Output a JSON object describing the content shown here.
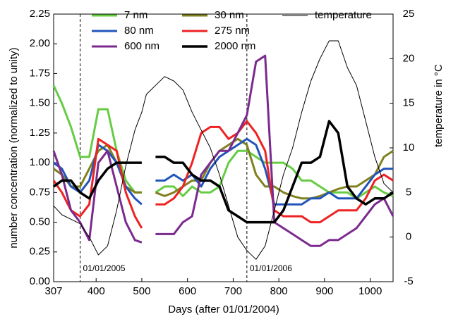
{
  "chart_data": {
    "type": "line",
    "xlabel": "Days (after 01/01/2004)",
    "ylabel": "number concentration (normalized to unity)",
    "y2label": "temperature in °C",
    "x": [
      307,
      325,
      345,
      365,
      385,
      405,
      425,
      445,
      465,
      485,
      500,
      510,
      530,
      550,
      570,
      590,
      610,
      630,
      650,
      670,
      690,
      710,
      730,
      750,
      770,
      790,
      810,
      830,
      850,
      870,
      890,
      910,
      930,
      950,
      970,
      990,
      1010,
      1030,
      1050
    ],
    "xlim": [
      307,
      1050
    ],
    "xticks": [
      307,
      400,
      500,
      600,
      700,
      800,
      900,
      1000
    ],
    "ylim": [
      0,
      2.25
    ],
    "yticks": [
      {
        "value": 0,
        "label": "0.00"
      },
      {
        "value": 0.25,
        "label": "0.25"
      },
      {
        "value": 0.5,
        "label": "0.50"
      },
      {
        "value": 0.75,
        "label": "0.75"
      },
      {
        "value": 1,
        "label": "1.00"
      },
      {
        "value": 1.25,
        "label": "1.25"
      },
      {
        "value": 1.5,
        "label": "1.50"
      },
      {
        "value": 1.75,
        "label": "1.75"
      },
      {
        "value": 2,
        "label": "2.00"
      },
      {
        "value": 2.25,
        "label": "2.25"
      }
    ],
    "y2lim": [
      -5,
      25
    ],
    "y2ticks": [
      -5,
      0,
      5,
      10,
      15,
      20,
      25
    ],
    "annotations": [
      {
        "x": 365,
        "label": "01/01/2005"
      },
      {
        "x": 730,
        "label": "01/01/2006"
      }
    ],
    "series": [
      {
        "name": "7 nm",
        "color": "#66cc44",
        "values": [
          1.65,
          1.5,
          1.3,
          1.05,
          1.05,
          1.45,
          1.45,
          1.1,
          0.85,
          0.75,
          0.75,
          null,
          0.75,
          0.8,
          0.8,
          0.72,
          0.8,
          0.75,
          0.75,
          0.8,
          1.0,
          1.1,
          1.1,
          1.05,
          1.0,
          1.0,
          1.0,
          0.95,
          0.85,
          0.85,
          0.8,
          0.75,
          0.75,
          0.75,
          0.7,
          0.75,
          0.8,
          0.75,
          0.72
        ]
      },
      {
        "name": "30 nm",
        "color": "#808020",
        "values": [
          0.95,
          0.9,
          0.8,
          0.8,
          0.95,
          1.1,
          1.15,
          1.0,
          0.8,
          0.75,
          0.75,
          null,
          0.75,
          0.72,
          0.75,
          0.8,
          0.85,
          0.85,
          1.0,
          1.1,
          1.15,
          1.2,
          1.15,
          0.9,
          0.8,
          0.8,
          0.75,
          0.72,
          0.7,
          0.7,
          0.72,
          0.75,
          0.78,
          0.8,
          0.8,
          0.85,
          0.9,
          1.05,
          1.1
        ]
      },
      {
        "name": "80 nm",
        "color": "#2255bb",
        "values": [
          1.0,
          0.95,
          0.8,
          0.75,
          0.85,
          1.15,
          1.1,
          1.0,
          0.8,
          0.7,
          0.65,
          null,
          0.85,
          0.85,
          0.9,
          0.85,
          0.9,
          0.8,
          0.95,
          1.05,
          1.1,
          1.15,
          1.2,
          1.15,
          0.95,
          0.65,
          0.65,
          0.65,
          0.65,
          0.7,
          0.7,
          0.75,
          0.7,
          0.7,
          0.7,
          0.8,
          0.9,
          0.95,
          0.95
        ]
      },
      {
        "name": "275 nm",
        "color": "#ee2222",
        "values": [
          0.85,
          0.75,
          0.6,
          0.55,
          0.65,
          1.2,
          1.15,
          1.1,
          0.75,
          0.55,
          0.45,
          null,
          0.65,
          0.65,
          0.7,
          0.8,
          1.0,
          1.25,
          1.3,
          1.3,
          1.2,
          1.25,
          1.35,
          1.25,
          1.1,
          0.6,
          0.55,
          0.55,
          0.55,
          0.5,
          0.5,
          0.55,
          0.6,
          0.6,
          0.6,
          0.7,
          0.85,
          0.9,
          0.85
        ]
      },
      {
        "name": "600 nm",
        "color": "#7b2a8e",
        "values": [
          1.1,
          0.9,
          0.6,
          0.5,
          0.35,
          1.0,
          1.1,
          0.8,
          0.5,
          0.35,
          0.33,
          null,
          0.4,
          0.4,
          0.4,
          0.5,
          0.55,
          0.9,
          1.0,
          1.1,
          1.1,
          1.25,
          1.4,
          1.85,
          1.9,
          0.5,
          0.45,
          0.4,
          0.35,
          0.3,
          0.3,
          0.35,
          0.35,
          0.4,
          0.45,
          0.55,
          0.65,
          0.7,
          0.55
        ]
      },
      {
        "name": "2000 nm",
        "color": "#000000",
        "width": 3.5,
        "values": [
          0.8,
          0.85,
          0.85,
          0.75,
          0.7,
          0.85,
          0.95,
          1.0,
          1.0,
          1.0,
          1.0,
          null,
          1.05,
          1.05,
          1.0,
          1.0,
          0.9,
          0.85,
          0.85,
          0.8,
          0.6,
          0.55,
          0.5,
          0.5,
          0.5,
          0.5,
          0.6,
          0.8,
          1.0,
          1.0,
          1.05,
          1.35,
          1.25,
          0.8,
          0.7,
          0.65,
          0.7,
          0.7,
          0.75
        ]
      },
      {
        "name": "temperature",
        "color": "#000000",
        "width": 1,
        "axis": "y2",
        "values": [
          3.5,
          2.5,
          2,
          1.5,
          0,
          -2,
          -1,
          3,
          8,
          12,
          14,
          16,
          17,
          18,
          17.5,
          16.5,
          14,
          12,
          10,
          7,
          3.5,
          0,
          -1.5,
          -2.5,
          -1,
          3,
          7,
          10,
          14,
          17.5,
          20,
          22,
          22,
          19,
          17,
          13,
          9,
          6,
          5
        ]
      }
    ]
  }
}
